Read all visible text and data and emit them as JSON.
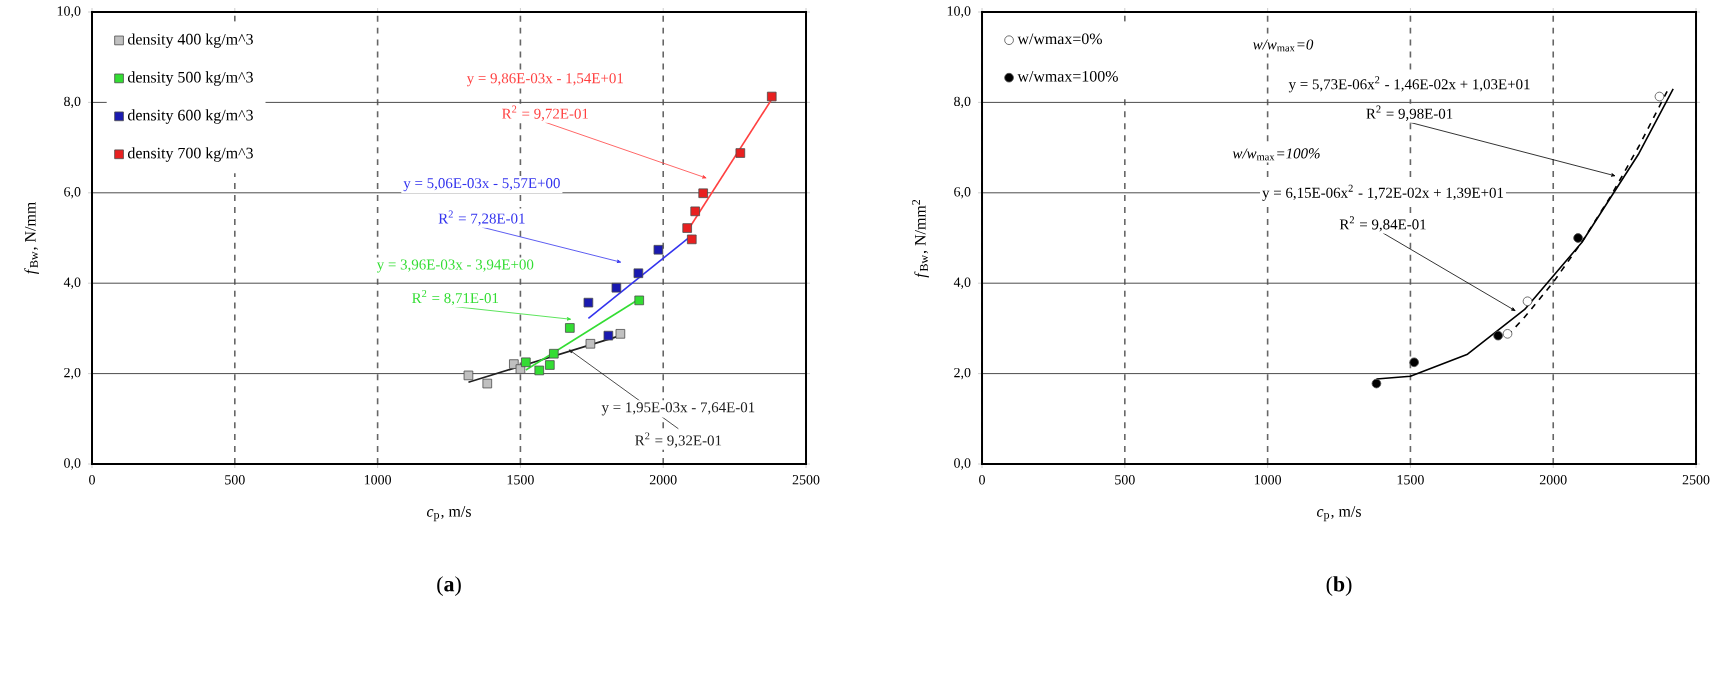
{
  "chart_data": [
    {
      "type": "scatter",
      "xlabel": "*c*$_{p}$, m/s",
      "ylabel": "*f*$_{Bw}$, N/mm",
      "xlim": [
        0,
        2500
      ],
      "ylim": [
        0,
        10
      ],
      "xticks": [
        0,
        500,
        1000,
        1500,
        2000,
        2500
      ],
      "yticks": [
        {
          "value": 0,
          "label": "0,0"
        },
        {
          "value": 2,
          "label": "2,0"
        },
        {
          "value": 4,
          "label": "4,0"
        },
        {
          "value": 6,
          "label": "6,0"
        },
        {
          "value": 8,
          "label": "8,0"
        },
        {
          "value": 10,
          "label": "10,0"
        }
      ],
      "grid": true,
      "legend": "top left",
      "marker": "square",
      "series": [
        {
          "name": "density 400 kg/m^3",
          "color": "#c0c0c0",
          "x": [
            1318,
            1384,
            1477,
            1500,
            1745,
            1850
          ],
          "values": [
            1.96,
            1.78,
            2.21,
            2.1,
            2.66,
            2.88
          ]
        },
        {
          "name": "density 500 kg/m^3",
          "color": "#33dd33",
          "x": [
            1519,
            1566,
            1603,
            1617,
            1673,
            1916
          ],
          "values": [
            2.25,
            2.07,
            2.19,
            2.44,
            3.01,
            3.62
          ]
        },
        {
          "name": "density 600 kg/m^3",
          "color": "#1a1ab0",
          "x": [
            1738,
            1836,
            1913,
            1983,
            1808
          ],
          "values": [
            3.57,
            3.9,
            4.22,
            4.74,
            2.84
          ]
        },
        {
          "name": "density 700 kg/m^3",
          "color": "#e82020",
          "x": [
            2084,
            2100,
            2112,
            2140,
            2270,
            2380
          ],
          "values": [
            5.22,
            4.97,
            5.59,
            5.99,
            6.88,
            8.13
          ]
        },
        {
          "type": "line",
          "marker": "none",
          "color": "#202020",
          "x": [
            1318,
            1850
          ],
          "values": [
            1.81,
            2.84
          ]
        },
        {
          "type": "line",
          "marker": "none",
          "color": "#33dd33",
          "x": [
            1519,
            1916
          ],
          "values": [
            2.08,
            3.65
          ]
        },
        {
          "type": "line",
          "marker": "none",
          "color": "#3333ee",
          "x": [
            1738,
            2100
          ],
          "values": [
            3.22,
            5.06
          ]
        },
        {
          "type": "line",
          "marker": "none",
          "color": "#ff4040",
          "x": [
            2084,
            2380
          ],
          "values": [
            5.15,
            8.07
          ]
        }
      ],
      "annotations": [
        "y = 9,86E-03x - 1,54E+01",
        {
          "text": "R$^{2}$ = 9,72E-01",
          "x": 2154,
          "y": 6.32
        },
        "y = 5,06E-03x - 5,57E+00",
        {
          "text": "R$^{2}$ = 7,28E-01",
          "x": 1855,
          "y": 4.46
        },
        "y = 3,96E-03x - 3,94E+00",
        {
          "text": "R$^{2}$ = 8,71E-01",
          "x": 1680,
          "y": 3.2
        },
        "y = 1,95E-03x - 7,64E-01",
        {
          "text": "R$^{2}$ = 9,32E-01",
          "x": 1668,
          "y": 2.54
        },
        "(**a**)"
      ]
    },
    {
      "type": "scatter",
      "xlabel": "*c*$_{p}$, m/s",
      "ylabel": "*f*$_{Bw}$, N/mm$^{2}$",
      "xlim": [
        0,
        2500
      ],
      "ylim": [
        0,
        10
      ],
      "xticks": [
        0,
        500,
        1000,
        1500,
        2000,
        2500
      ],
      "yticks": [
        {
          "value": 0,
          "label": "0,0"
        },
        {
          "value": 2,
          "label": "2,0"
        },
        {
          "value": 4,
          "label": "4,0"
        },
        {
          "value": 6,
          "label": "6,0"
        },
        {
          "value": 8,
          "label": "8,0"
        },
        {
          "value": 10,
          "label": "10,0"
        }
      ],
      "grid": true,
      "legend": "top left",
      "marker": "circle",
      "series": [
        {
          "name": "w/wmax=0%",
          "color": "#ffffff",
          "x": [
            2372,
            1910,
            1840
          ],
          "values": [
            8.13,
            3.6,
            2.88
          ]
        },
        {
          "name": "w/wmax=100%",
          "color": "#000000",
          "x": [
            1381,
            1513,
            1807,
            2087
          ],
          "values": [
            1.78,
            2.25,
            2.84,
            5.0
          ]
        },
        {
          "type": "line",
          "marker": "none",
          "line_style": "dashed",
          "color": "#000000",
          "x": [
            1840,
            1900,
            2000,
            2100,
            2200,
            2300,
            2400
          ],
          "values": [
            2.84,
            3.25,
            4.02,
            4.91,
            5.91,
            7.03,
            8.26
          ]
        },
        {
          "type": "line",
          "marker": "none",
          "line_style": "solid",
          "color": "#000000",
          "x": [
            1381,
            1500,
            1700,
            1900,
            2100,
            2300,
            2420
          ],
          "values": [
            1.88,
            1.94,
            2.43,
            3.42,
            4.9,
            6.87,
            8.3
          ]
        }
      ],
      "annotations": [
        "*w/w*$_{max}$*=0*",
        "y = 5,73E-06x$^{2}$ - 1,46E-02x + 1,03E+01",
        {
          "text": "R$^{2}$ = 9,98E-01",
          "x": 2220,
          "y": 6.37
        },
        "*w/w*$_{max}$*=100%*",
        "y = 6,15E-06x$^{2}$ - 1,72E-02x + 1,39E+01",
        {
          "text": "R$^{2}$ = 9,84E-01",
          "x": 1870,
          "y": 3.38
        },
        "(**b**)"
      ]
    }
  ]
}
